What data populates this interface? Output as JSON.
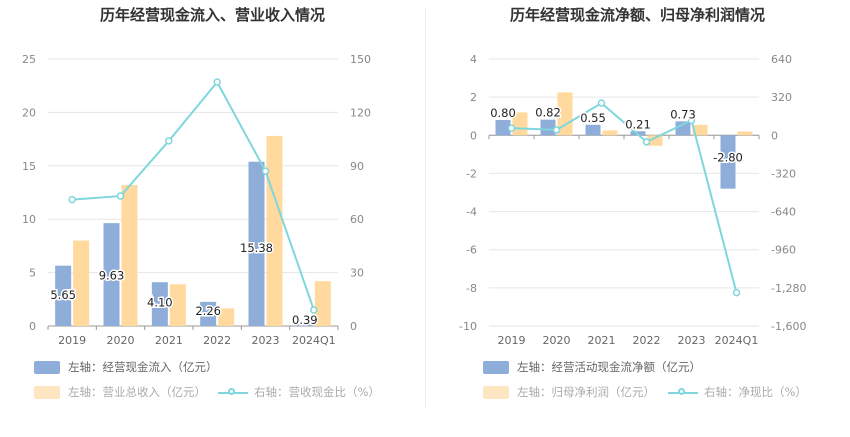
{
  "colors": {
    "blue": "#8eadd9",
    "orange": "#ffd99e",
    "teal": "#7fd6dc",
    "grid": "#e6e6e6",
    "axis": "#999999"
  },
  "charts": [
    {
      "title": "历年经营现金流入、营业收入情况",
      "legend": [
        {
          "label": "左轴：经营现金流入（亿元）",
          "kind": "bar",
          "color": "#8eadd9"
        },
        {
          "label": "左轴：营业总收入（亿元）",
          "kind": "bar",
          "color": "#ffd99e"
        },
        {
          "label": "右轴：营收现金比（%）",
          "kind": "line",
          "color": "#7fd6dc"
        }
      ]
    },
    {
      "title": "历年经营现金流净额、归母净利润情况",
      "legend": [
        {
          "label": "左轴：经营活动现金流净额（亿元）",
          "kind": "bar",
          "color": "#8eadd9"
        },
        {
          "label": "左轴：归母净利润（亿元）",
          "kind": "bar",
          "color": "#ffd99e"
        },
        {
          "label": "右轴：净现比（%）",
          "kind": "line",
          "color": "#7fd6dc"
        }
      ]
    }
  ],
  "chart_data": [
    {
      "type": "bar",
      "title": "历年经营现金流入、营业收入情况",
      "categories": [
        "2019",
        "2020",
        "2021",
        "2022",
        "2023",
        "2024Q1"
      ],
      "left_axis": {
        "ylim": [
          0,
          25
        ],
        "ticks": [
          "0",
          "5",
          "10",
          "15",
          "20",
          "25"
        ]
      },
      "right_axis": {
        "ylim": [
          0,
          150
        ],
        "ticks": [
          "0",
          "30",
          "60",
          "90",
          "120",
          "150"
        ]
      },
      "series": [
        {
          "name": "左轴：经营现金流入（亿元）",
          "axis": "left",
          "type": "bar",
          "values": [
            5.65,
            9.63,
            4.1,
            2.26,
            15.38,
            0.39
          ],
          "labels": [
            "5.65",
            "9.63",
            "4.10",
            "2.26",
            "15.38",
            "0.39"
          ]
        },
        {
          "name": "左轴：营业总收入（亿元）",
          "axis": "left",
          "type": "bar",
          "values": [
            8.0,
            13.2,
            3.9,
            1.65,
            17.8,
            4.2
          ]
        },
        {
          "name": "右轴：营收现金比（%）",
          "axis": "right",
          "type": "line",
          "values": [
            71,
            73,
            104,
            137,
            87,
            9
          ]
        }
      ]
    },
    {
      "type": "bar",
      "title": "历年经营现金流净额、归母净利润情况",
      "categories": [
        "2019",
        "2020",
        "2021",
        "2022",
        "2023",
        "2024Q1"
      ],
      "left_axis": {
        "ylim": [
          -10,
          4
        ],
        "ticks": [
          "-10",
          "-8",
          "-6",
          "-4",
          "-2",
          "0",
          "2",
          "4"
        ]
      },
      "right_axis": {
        "ylim": [
          -1600,
          640
        ],
        "ticks": [
          "-1,600",
          "-1,280",
          "-960",
          "-640",
          "-320",
          "0",
          "320",
          "640"
        ]
      },
      "series": [
        {
          "name": "左轴：经营活动现金流净额（亿元）",
          "axis": "left",
          "type": "bar",
          "values": [
            0.8,
            0.82,
            0.55,
            0.21,
            0.73,
            -2.8
          ],
          "labels": [
            "0.80",
            "0.82",
            "0.55",
            "0.21",
            "0.73",
            "-2.80"
          ]
        },
        {
          "name": "左轴：归母净利润（亿元）",
          "axis": "left",
          "type": "bar",
          "values": [
            1.2,
            2.25,
            0.25,
            -0.55,
            0.55,
            0.2
          ]
        },
        {
          "name": "右轴：净现比（%）",
          "axis": "right",
          "type": "line",
          "values": [
            60,
            45,
            270,
            -55,
            125,
            -1320
          ]
        }
      ]
    }
  ]
}
